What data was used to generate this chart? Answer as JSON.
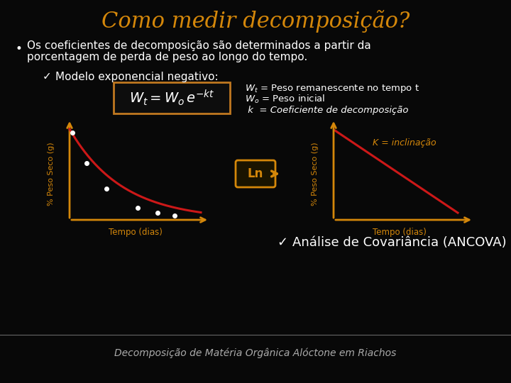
{
  "background_color": "#080808",
  "title": "Como medir decomposição?",
  "title_color": "#d4870a",
  "title_fontsize": 22,
  "bullet_color": "#ffffff",
  "bullet_fontsize": 11,
  "bullet_line1": "Os coeficientes de decomposição são determinados a partir da",
  "bullet_line2": "porcentagem de perda de peso ao longo do tempo.",
  "checkmark_model_text": "Modelo exponencial negativo:",
  "checkmark_model_color": "#ffffff",
  "checkmark_model_fontsize": 11,
  "formula_box_color": "#c07820",
  "formula_text_color": "#ffffff",
  "legend_wt_rest": " = Peso remanescente no tempo t",
  "legend_wo_rest": " = Peso inicial",
  "legend_k": " k  = Coeficiente de decomposição",
  "legend_color": "#ffffff",
  "legend_fontsize": 9.5,
  "arrow_color": "#d4870a",
  "ln_text": "Ln",
  "ln_color": "#d4870a",
  "ln_fontsize": 12,
  "curve_color": "#cc1818",
  "line_color": "#cc1818",
  "dot_color": "#ffffff",
  "axis_color": "#d4870a",
  "ylabel_left": "% Peso Seco (g)",
  "xlabel_left": "Tempo (dias)",
  "ylabel_right": "% Peso Seco (g)",
  "xlabel_right": "Tempo (dias)",
  "k_annotation": "K = inclinação",
  "k_annotation_color": "#d4870a",
  "checkmark_ancova": "Análise de Covariância (ANCOVA)",
  "checkmark_ancova_color": "#ffffff",
  "checkmark_ancova_fontsize": 13,
  "footer_text": "Decomposição de Matéria Orgânica Alóctone em Riachos",
  "footer_color": "#aaaaaa",
  "footer_fontsize": 10,
  "footer_line_color": "#666666"
}
